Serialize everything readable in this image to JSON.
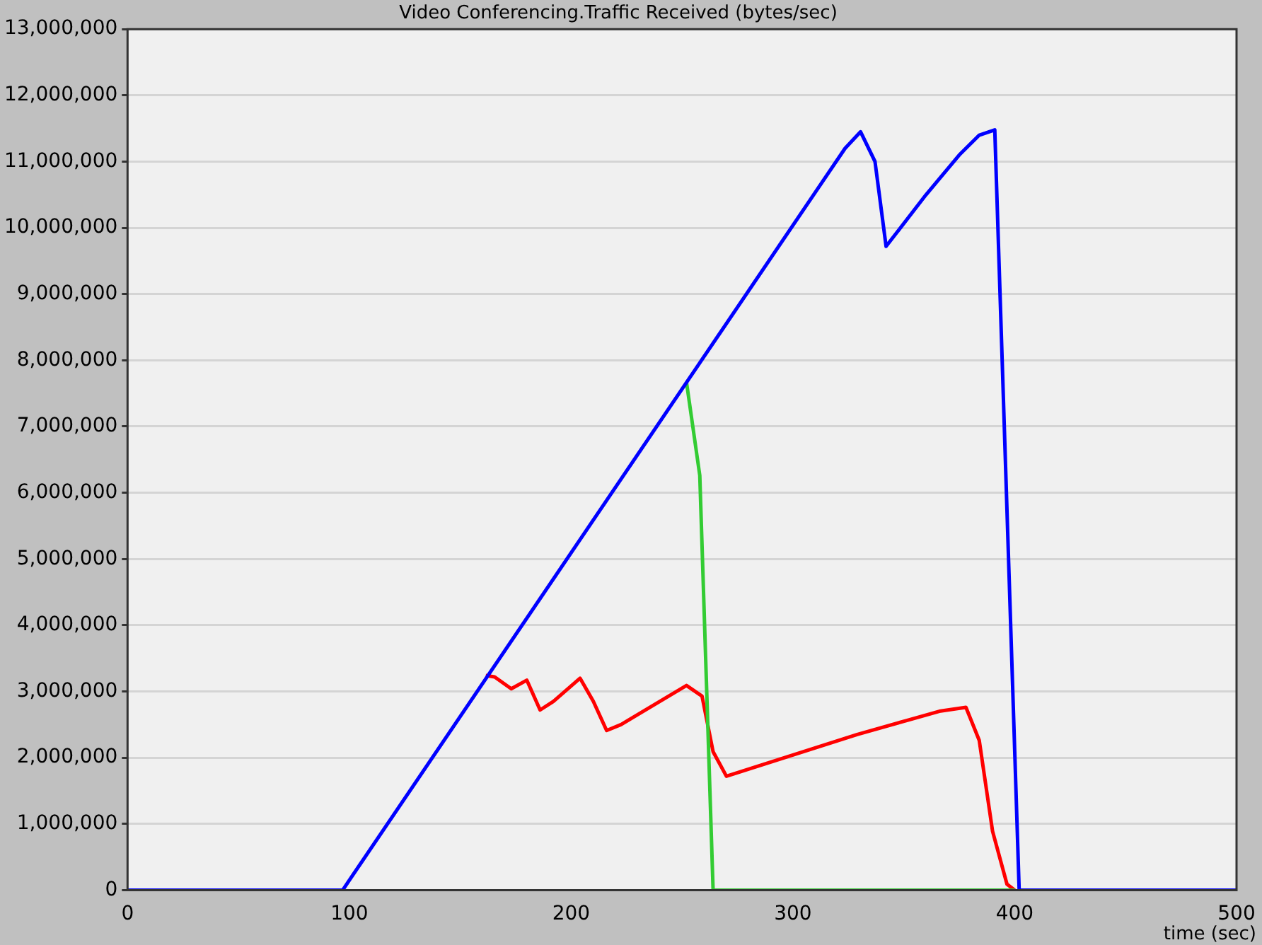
{
  "chart_data": {
    "type": "line",
    "title": "Video Conferencing.Traffic Received (bytes/sec)",
    "xlabel": "time (sec)",
    "series": [
      {
        "color": "#0000ff",
        "x": [
          0,
          97,
          100,
          323.5,
          330.5,
          337,
          342,
          360,
          375,
          384,
          391,
          402,
          500
        ],
        "values": [
          0,
          0,
          150000,
          11200000,
          11450000,
          11000000,
          9720000,
          10500000,
          11100000,
          11400000,
          11480000,
          0,
          0
        ]
      },
      {
        "color": "#33cc33",
        "x": [
          252,
          258,
          264,
          400
        ],
        "values": [
          7670000,
          6260000,
          0,
          0
        ]
      },
      {
        "color": "#ff0000",
        "x": [
          161.5,
          165.5,
          173,
          180,
          186,
          192,
          204,
          210,
          216,
          222.5,
          252,
          259,
          264,
          270,
          329,
          366,
          378,
          384,
          390,
          396.5,
          400
        ],
        "values": [
          3240000,
          3220000,
          3040000,
          3170000,
          2720000,
          2850000,
          3200000,
          2850000,
          2410000,
          2500000,
          3090000,
          2930000,
          2090000,
          1720000,
          2350000,
          2700000,
          2760000,
          2260000,
          890000,
          90000,
          0
        ]
      }
    ],
    "xlim": [
      0,
      500
    ],
    "xticks": [
      0,
      100,
      200,
      300,
      400,
      500
    ],
    "ylim": [
      0,
      13000000
    ],
    "yticks": [
      0,
      {
        "value": 1000000,
        "label": "1,000,000"
      },
      {
        "value": 2000000,
        "label": "2,000,000"
      },
      {
        "value": 3000000,
        "label": "3,000,000"
      },
      {
        "value": 4000000,
        "label": "4,000,000"
      },
      {
        "value": 5000000,
        "label": "5,000,000"
      },
      {
        "value": 6000000,
        "label": "6,000,000"
      },
      {
        "value": 7000000,
        "label": "7,000,000"
      },
      {
        "value": 8000000,
        "label": "8,000,000"
      },
      {
        "value": 9000000,
        "label": "9,000,000"
      },
      {
        "value": 10000000,
        "label": "10,000,000"
      },
      {
        "value": 11000000,
        "label": "11,000,000"
      },
      {
        "value": 12000000,
        "label": "12,000,000"
      },
      {
        "value": 13000000,
        "label": "13,000,000"
      }
    ],
    "grid": "y",
    "legend": false,
    "marker": "none",
    "line_style": "solid"
  }
}
